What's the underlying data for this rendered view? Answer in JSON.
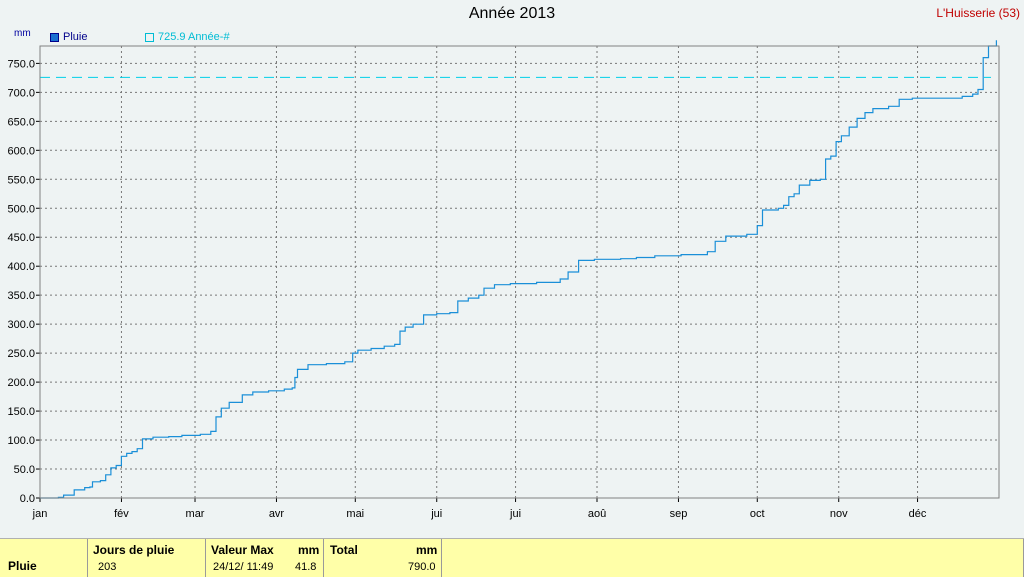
{
  "header": {
    "title": "Année 2013",
    "station": "L'Huisserie (53)",
    "unit": "mm"
  },
  "legend": {
    "rain_label": "Pluie",
    "avg_label": "725.9 Année-#"
  },
  "colors": {
    "rain": "#1a8fd8",
    "avg": "#00d0e8",
    "grid": "#777777",
    "footer": "#ffffa8"
  },
  "chart_data": {
    "type": "line",
    "title": "Année 2013",
    "ylabel": "mm",
    "ylim": [
      0,
      780
    ],
    "yticks": [
      "0.0",
      "50.0",
      "100.0",
      "150.0",
      "200.0",
      "250.0",
      "300.0",
      "350.0",
      "400.0",
      "450.0",
      "500.0",
      "550.0",
      "600.0",
      "650.0",
      "700.0",
      "750.0"
    ],
    "xlim": [
      1,
      366
    ],
    "months": [
      {
        "label": "jan",
        "day": 1
      },
      {
        "label": "fév",
        "day": 32
      },
      {
        "label": "mar",
        "day": 60
      },
      {
        "label": "avr",
        "day": 91
      },
      {
        "label": "mai",
        "day": 121
      },
      {
        "label": "jui",
        "day": 152
      },
      {
        "label": "jui",
        "day": 182
      },
      {
        "label": "aoû",
        "day": 213
      },
      {
        "label": "sep",
        "day": 244
      },
      {
        "label": "oct",
        "day": 274
      },
      {
        "label": "nov",
        "day": 305
      },
      {
        "label": "déc",
        "day": 335
      }
    ],
    "grid": true,
    "legend_position": "top-left",
    "reference_line": {
      "name": "725.9 Année-#",
      "value": 725.9
    },
    "series": [
      {
        "name": "Pluie",
        "points": [
          [
            1,
            0
          ],
          [
            8,
            1
          ],
          [
            10,
            5
          ],
          [
            14,
            14
          ],
          [
            18,
            18
          ],
          [
            20,
            19
          ],
          [
            21,
            28
          ],
          [
            24,
            30
          ],
          [
            26,
            40
          ],
          [
            28,
            52
          ],
          [
            30,
            56
          ],
          [
            32,
            72
          ],
          [
            34,
            77
          ],
          [
            36,
            80
          ],
          [
            38,
            85
          ],
          [
            40,
            102
          ],
          [
            44,
            105
          ],
          [
            50,
            106
          ],
          [
            55,
            108
          ],
          [
            62,
            110
          ],
          [
            66,
            115
          ],
          [
            68,
            140
          ],
          [
            70,
            155
          ],
          [
            73,
            165
          ],
          [
            78,
            178
          ],
          [
            82,
            183
          ],
          [
            88,
            185
          ],
          [
            94,
            188
          ],
          [
            97,
            190
          ],
          [
            98,
            208
          ],
          [
            99,
            222
          ],
          [
            103,
            230
          ],
          [
            110,
            232
          ],
          [
            117,
            235
          ],
          [
            120,
            250
          ],
          [
            122,
            255
          ],
          [
            127,
            258
          ],
          [
            132,
            262
          ],
          [
            136,
            265
          ],
          [
            138,
            288
          ],
          [
            140,
            295
          ],
          [
            143,
            300
          ],
          [
            147,
            316
          ],
          [
            152,
            318
          ],
          [
            157,
            320
          ],
          [
            160,
            340
          ],
          [
            164,
            345
          ],
          [
            168,
            350
          ],
          [
            170,
            362
          ],
          [
            174,
            368
          ],
          [
            180,
            370
          ],
          [
            190,
            372
          ],
          [
            199,
            378
          ],
          [
            202,
            390
          ],
          [
            206,
            410
          ],
          [
            212,
            412
          ],
          [
            222,
            413
          ],
          [
            228,
            415
          ],
          [
            235,
            418
          ],
          [
            245,
            420
          ],
          [
            255,
            425
          ],
          [
            258,
            443
          ],
          [
            262,
            452
          ],
          [
            270,
            455
          ],
          [
            274,
            470
          ],
          [
            276,
            497
          ],
          [
            282,
            500
          ],
          [
            284,
            505
          ],
          [
            286,
            520
          ],
          [
            288,
            525
          ],
          [
            290,
            540
          ],
          [
            294,
            548
          ],
          [
            298,
            550
          ],
          [
            300,
            585
          ],
          [
            302,
            590
          ],
          [
            304,
            615
          ],
          [
            306,
            625
          ],
          [
            309,
            640
          ],
          [
            312,
            655
          ],
          [
            315,
            665
          ],
          [
            318,
            672
          ],
          [
            324,
            676
          ],
          [
            328,
            688
          ],
          [
            333,
            690
          ],
          [
            342,
            690
          ],
          [
            352,
            693
          ],
          [
            356,
            697
          ],
          [
            358,
            705
          ],
          [
            360,
            760
          ],
          [
            362,
            780
          ],
          [
            365,
            790
          ]
        ]
      }
    ]
  },
  "summary": {
    "row_label": "Pluie",
    "days_header": "Jours de pluie",
    "days_value": "203",
    "max_header": "Valeur Max",
    "max_unit": "mm",
    "max_date": "24/12/ 11:49",
    "max_value": "41.8",
    "total_header": "Total",
    "total_unit": "mm",
    "total_value": "790.0"
  }
}
